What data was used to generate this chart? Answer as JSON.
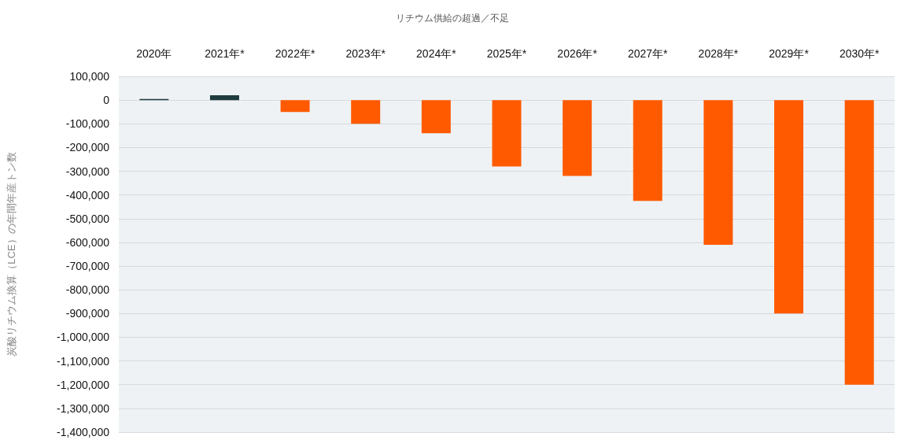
{
  "chart_data": {
    "type": "bar",
    "title": "リチウム供給の超過／不足",
    "ylabel": "炭酸リチウム換算（LCE）の年間年産トン数",
    "categories": [
      "2020年",
      "2021年*",
      "2022年*",
      "2023年*",
      "2024年*",
      "2025年*",
      "2026年*",
      "2027年*",
      "2028年*",
      "2029年*",
      "2030年*"
    ],
    "values": [
      5000,
      20000,
      -50000,
      -100000,
      -140000,
      -280000,
      -320000,
      -425000,
      -610000,
      -900000,
      -1200000
    ],
    "colors": [
      "#1f3b3d",
      "#1f3b3d",
      "#ff5a00",
      "#ff5a00",
      "#ff5a00",
      "#ff5a00",
      "#ff5a00",
      "#ff5a00",
      "#ff5a00",
      "#ff5a00",
      "#ff5a00"
    ],
    "ylim": [
      -1400000,
      100000
    ],
    "yticks": [
      {
        "value": 100000,
        "label": "100,000"
      },
      0,
      {
        "value": -100000,
        "label": "-100,000"
      },
      {
        "value": -200000,
        "label": "-200,000"
      },
      {
        "value": -300000,
        "label": "-300,000"
      },
      {
        "value": -400000,
        "label": "-400,000"
      },
      {
        "value": -500000,
        "label": "-500,000"
      },
      {
        "value": -600000,
        "label": "-600,000"
      },
      {
        "value": -700000,
        "label": "-700,000"
      },
      {
        "value": -800000,
        "label": "-800,000"
      },
      {
        "value": -900000,
        "label": "-900,000"
      },
      {
        "value": -1000000,
        "label": "-1,000,000"
      },
      {
        "value": -1100000,
        "label": "-1,100,000"
      },
      {
        "value": -1200000,
        "label": "-1,200,000"
      },
      {
        "value": -1300000,
        "label": "-1,300,000"
      },
      {
        "value": -1400000,
        "label": "-1,400,000"
      }
    ],
    "grid": "y"
  }
}
